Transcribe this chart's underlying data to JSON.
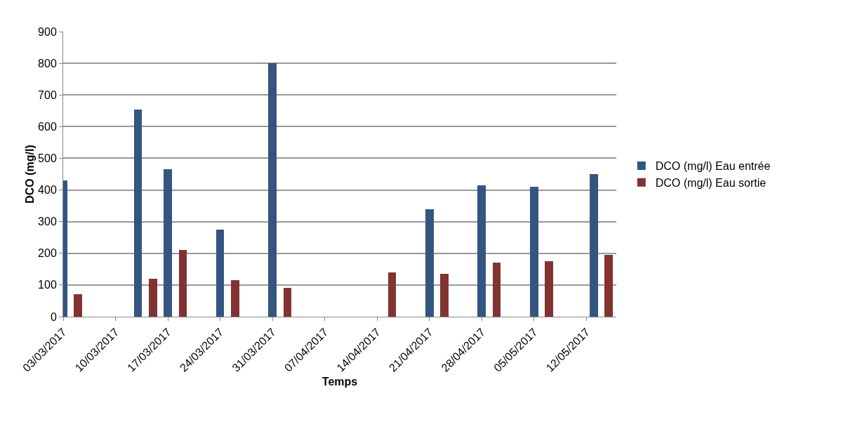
{
  "chart_data": {
    "type": "bar",
    "xlabel": "Temps",
    "ylabel": "DCO (mg/l)",
    "x": [
      "2017-03-04",
      "2017-03-14",
      "2017-03-18",
      "2017-03-25",
      "2017-04-01",
      "2017-04-15",
      "2017-04-22",
      "2017-04-29",
      "2017-05-06",
      "2017-05-14"
    ],
    "series": [
      {
        "name": "DCO (mg/l) Eau entrée",
        "color": "#335580",
        "values": [
          430,
          655,
          465,
          275,
          800,
          null,
          340,
          415,
          410,
          450
        ]
      },
      {
        "name": "DCO (mg/l) Eau sortie",
        "color": "#833232",
        "values": [
          70,
          120,
          210,
          115,
          90,
          140,
          135,
          170,
          175,
          195
        ]
      }
    ],
    "xlim": [
      "2017-03-03",
      "2017-05-16"
    ],
    "xticks": [
      {
        "value": "2017-03-03",
        "label": "03/03/2017"
      },
      {
        "value": "2017-03-10",
        "label": "10/03/2017"
      },
      {
        "value": "2017-03-17",
        "label": "17/03/2017"
      },
      {
        "value": "2017-03-24",
        "label": "24/03/2017"
      },
      {
        "value": "2017-03-31",
        "label": "31/03/2017"
      },
      {
        "value": "2017-04-07",
        "label": "07/04/2017"
      },
      {
        "value": "2017-04-14",
        "label": "14/04/2017"
      },
      {
        "value": "2017-04-21",
        "label": "21/04/2017"
      },
      {
        "value": "2017-04-28",
        "label": "28/04/2017"
      },
      {
        "value": "2017-05-05",
        "label": "05/05/2017"
      },
      {
        "value": "2017-05-12",
        "label": "12/05/2017"
      }
    ],
    "ylim": [
      0,
      900
    ],
    "yticks": [
      0,
      100,
      200,
      300,
      400,
      500,
      600,
      700,
      800,
      900
    ],
    "grid": "y",
    "legend": "right"
  }
}
